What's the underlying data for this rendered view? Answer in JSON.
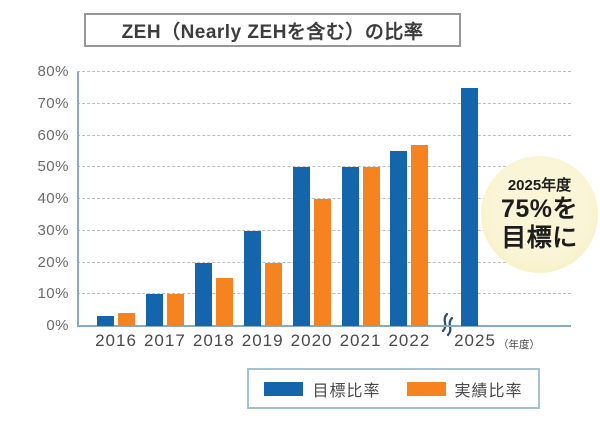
{
  "title": "ZEH（Nearly ZEHを含む）の比率",
  "colors": {
    "target_blue": "#1565ac",
    "actual_orange": "#f5831f",
    "axis": "#86abc3",
    "gridline": "#bdbdbd",
    "badge_bg": "#f8f1c6",
    "break_mark": "#2a4d74"
  },
  "chart_data": {
    "type": "bar",
    "categories": [
      "2016",
      "2017",
      "2018",
      "2019",
      "2020",
      "2021",
      "2022",
      "2025"
    ],
    "series": [
      {
        "name": "目標比率",
        "color": "#1565ac",
        "values": [
          3,
          10,
          20,
          30,
          50,
          50,
          55,
          75
        ]
      },
      {
        "name": "実績比率",
        "color": "#f5831f",
        "values": [
          4,
          10,
          15,
          20,
          40,
          50,
          57,
          null
        ]
      }
    ],
    "title": "ZEH（Nearly ZEHを含む）の比率",
    "xlabel": "（年度）",
    "ylabel": "",
    "ylim": [
      0,
      80
    ],
    "ytick_step": 10,
    "ytick_labels": [
      "0%",
      "10%",
      "20%",
      "30%",
      "40%",
      "50%",
      "60%",
      "70%",
      "80%"
    ],
    "grid": "horizontal-dashed",
    "legend_position": "bottom",
    "axis_break_between": [
      "2022",
      "2025"
    ]
  },
  "badge": {
    "line1": "2025年度",
    "line2": "75%を",
    "line3": "目標に"
  }
}
